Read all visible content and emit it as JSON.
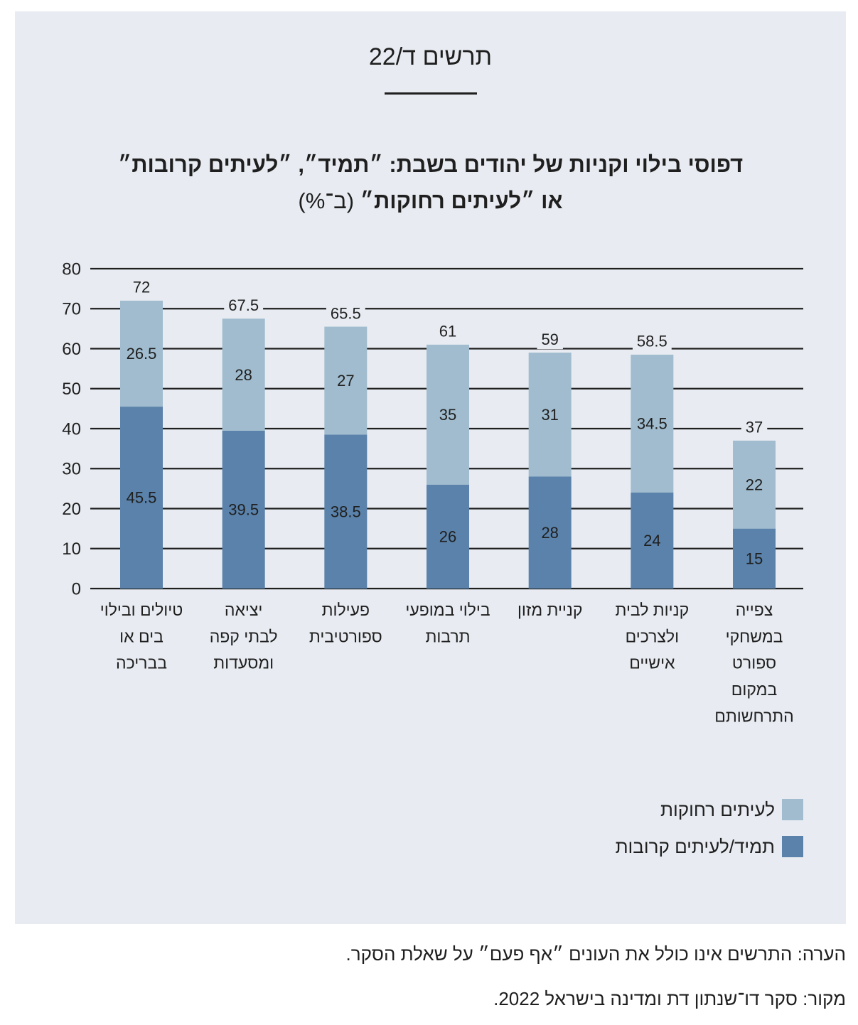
{
  "figure_label": "תרשים ד/22",
  "colors": {
    "panel": "#e8ecf2",
    "text": "#1f1f1f"
  },
  "chart_data": {
    "type": "bar",
    "stacked": true,
    "title": {
      "line1": "דפוסי בילוי וקניות של יהודים בשבת: ״תמיד״, ״לעיתים קרובות״",
      "line2": "או ״לעיתים רחוקות״",
      "unit": "(ב־%)"
    },
    "categories": [
      [
        "טיולים ובילוי",
        "בים או",
        "בבריכה"
      ],
      [
        "יציאה",
        "לבתי קפה",
        "ומסעדות"
      ],
      [
        "פעילות",
        "ספורטיבית"
      ],
      [
        "בילוי במופעי",
        "תרבות"
      ],
      [
        "קניית מזון"
      ],
      [
        "קניות לבית",
        "ולצרכים",
        "אישיים"
      ],
      [
        "צפייה",
        "במשחקי",
        "ספורט",
        "במקום",
        "התרחשותם"
      ]
    ],
    "series": [
      {
        "name": "תמיד/לעיתים קרובות",
        "color": "#5a82aa",
        "values": [
          45.5,
          39.5,
          38.5,
          26,
          28,
          24,
          15
        ]
      },
      {
        "name": "לעיתים רחוקות",
        "color": "#a0bcce",
        "values": [
          26.5,
          28,
          27,
          35,
          31,
          34.5,
          22
        ]
      }
    ],
    "totals": [
      72,
      67.5,
      65.5,
      61,
      59,
      58.5,
      37
    ],
    "ylim": [
      0,
      80
    ],
    "yticks": [
      0,
      10,
      20,
      30,
      40,
      50,
      60,
      70,
      80
    ],
    "grid": true,
    "legend": "bottom-right"
  },
  "notes": {
    "note": "הערה: התרשים אינו כולל את העונים ״אף פעם״ על שאלת הסקר.",
    "source": "מקור: סקר דו־שנתון דת ומדינה בישראל 2022."
  }
}
